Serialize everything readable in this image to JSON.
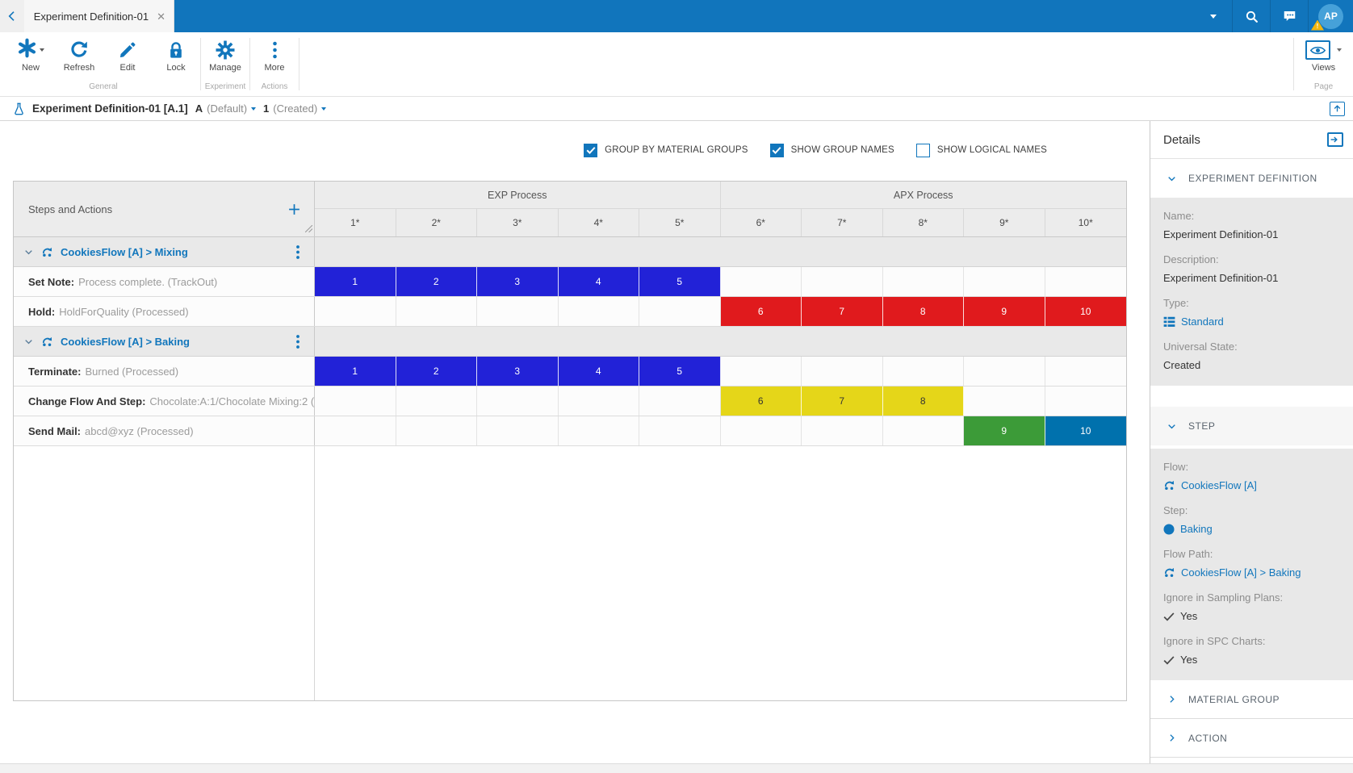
{
  "colors": {
    "topbar": "#1175BC",
    "accent": "#1176BC",
    "cell-blue": "#2222D7",
    "cell-red": "#E01A1D",
    "cell-yellow": "#E5D619",
    "cell-green": "#3C9B38",
    "cell-steel": "#0071AD"
  },
  "topbar": {
    "tab_title": "Experiment Definition-01",
    "avatar_initials": "AP"
  },
  "ribbon": {
    "buttons": [
      {
        "label": "New"
      },
      {
        "label": "Refresh"
      },
      {
        "label": "Edit"
      },
      {
        "label": "Lock"
      },
      {
        "label": "Manage"
      },
      {
        "label": "More"
      }
    ],
    "groups": [
      {
        "label": "General"
      },
      {
        "label": "Experiment"
      },
      {
        "label": "Actions"
      },
      {
        "label": "Page"
      }
    ],
    "views_label": "Views"
  },
  "breadcrumb": {
    "title": "Experiment Definition-01 [A.1]",
    "version": "A",
    "version_state": "(Default)",
    "revision": "1",
    "revision_state": "(Created)"
  },
  "options": [
    {
      "label": "GROUP BY MATERIAL GROUPS",
      "checked": true
    },
    {
      "label": "SHOW GROUP NAMES",
      "checked": true
    },
    {
      "label": "SHOW LOGICAL NAMES",
      "checked": false
    }
  ],
  "grid": {
    "corner_label": "Steps and Actions",
    "column_groups": [
      {
        "label": "EXP Process",
        "span": 5
      },
      {
        "label": "APX Process",
        "span": 5
      }
    ],
    "columns": [
      "1*",
      "2*",
      "3*",
      "4*",
      "5*",
      "6*",
      "7*",
      "8*",
      "9*",
      "10*"
    ],
    "rows": [
      {
        "type": "group",
        "label": "CookiesFlow [A] > Mixing"
      },
      {
        "type": "action",
        "prefix": "Set Note:",
        "text": "Process complete. (TrackOut)",
        "cells": [
          {
            "col": 1,
            "label": "1",
            "color": "blue"
          },
          {
            "col": 2,
            "label": "2",
            "color": "blue"
          },
          {
            "col": 3,
            "label": "3",
            "color": "blue"
          },
          {
            "col": 4,
            "label": "4",
            "color": "blue"
          },
          {
            "col": 5,
            "label": "5",
            "color": "blue"
          }
        ]
      },
      {
        "type": "action",
        "prefix": "Hold:",
        "text": "HoldForQuality (Processed)",
        "cells": [
          {
            "col": 6,
            "label": "6",
            "color": "red"
          },
          {
            "col": 7,
            "label": "7",
            "color": "red"
          },
          {
            "col": 8,
            "label": "8",
            "color": "red"
          },
          {
            "col": 9,
            "label": "9",
            "color": "red"
          },
          {
            "col": 10,
            "label": "10",
            "color": "red"
          }
        ]
      },
      {
        "type": "group",
        "label": "CookiesFlow [A] > Baking"
      },
      {
        "type": "action",
        "prefix": "Terminate:",
        "text": "Burned (Processed)",
        "cells": [
          {
            "col": 1,
            "label": "1",
            "color": "blue"
          },
          {
            "col": 2,
            "label": "2",
            "color": "blue"
          },
          {
            "col": 3,
            "label": "3",
            "color": "blue"
          },
          {
            "col": 4,
            "label": "4",
            "color": "blue"
          },
          {
            "col": 5,
            "label": "5",
            "color": "blue"
          }
        ]
      },
      {
        "type": "action",
        "prefix": "Change Flow And Step:",
        "text": "Chocolate:A:1/Chocolate Mixing:2 (...",
        "cells": [
          {
            "col": 6,
            "label": "6",
            "color": "yellow"
          },
          {
            "col": 7,
            "label": "7",
            "color": "yellow"
          },
          {
            "col": 8,
            "label": "8",
            "color": "yellow"
          }
        ]
      },
      {
        "type": "action",
        "prefix": "Send Mail:",
        "text": "abcd@xyz (Processed)",
        "cells": [
          {
            "col": 9,
            "label": "9",
            "color": "green"
          },
          {
            "col": 10,
            "label": "10",
            "color": "steel"
          }
        ]
      }
    ]
  },
  "details": {
    "title": "Details",
    "sections": [
      {
        "label": "EXPERIMENT DEFINITION"
      },
      {
        "label": "STEP"
      },
      {
        "label": "MATERIAL GROUP"
      },
      {
        "label": "ACTION"
      }
    ],
    "experiment": {
      "name_label": "Name:",
      "name": "Experiment Definition-01",
      "description_label": "Description:",
      "description": "Experiment Definition-01",
      "type_label": "Type:",
      "type": "Standard",
      "state_label": "Universal State:",
      "state": "Created"
    },
    "step": {
      "flow_label": "Flow:",
      "flow": "CookiesFlow [A]",
      "step_label": "Step:",
      "step": "Baking",
      "flow_path_label": "Flow Path:",
      "flow_path": "CookiesFlow [A] > Baking",
      "sampling_label": "Ignore in Sampling Plans:",
      "sampling": "Yes",
      "spc_label": "Ignore in SPC Charts:",
      "spc": "Yes"
    }
  }
}
